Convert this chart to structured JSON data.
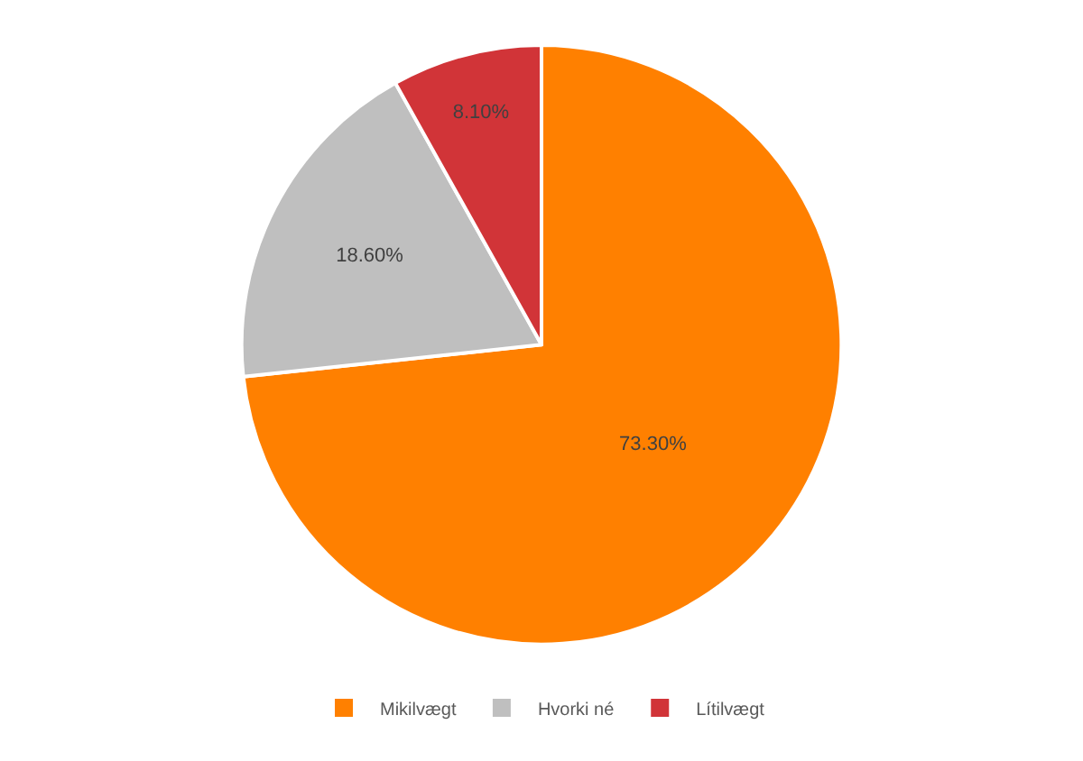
{
  "chart_data": {
    "type": "pie",
    "categories": [
      "Mikilvægt",
      "Hvorki né",
      "Lítilvægt"
    ],
    "values": [
      73.3,
      18.6,
      8.1
    ],
    "colors": [
      "#ff8000",
      "#bfbfbf",
      "#d13438"
    ],
    "value_labels": [
      "73.30%",
      "18.60%",
      "8.10%"
    ],
    "legend": "bottom"
  }
}
